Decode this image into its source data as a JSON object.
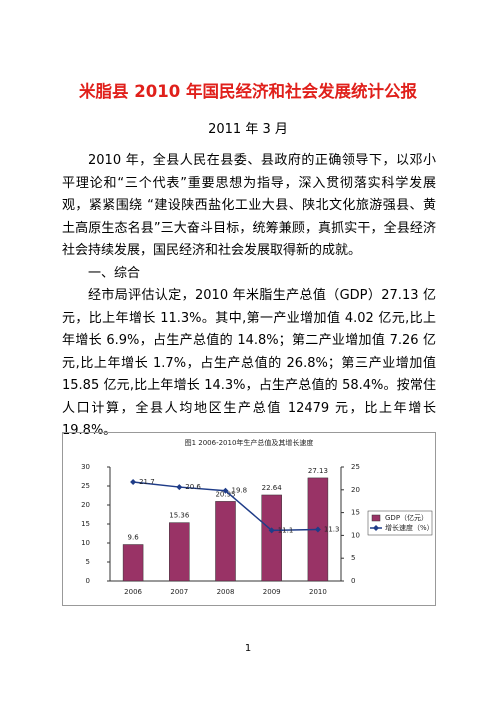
{
  "title": "米脂县 2010 年国民经济和社会发展统计公报",
  "date": "2011 年 3 月",
  "paragraphs": [
    "2010 年，全县人民在县委、县政府的正确领导下，以邓小平理论和“三个代表”重要思想为指导，深入贯彻落实科学发展观，紧紧围绕 “建设陕西盐化工业大县、陕北文化旅游强县、黄土高原生态名县”三大奋斗目标，统筹兼顾，真抓实干，全县经济社会持续发展，国民经济和社会发展取得新的成就。",
    "一、综合",
    "经市局评估认定，2010 年米脂生产总值（GDP）27.13 亿元，比上年增长 11.3%。其中,第一产业增加值 4.02 亿元,比上年增长 6.9%，占生产总值的 14.8%；第二产业增加值 7.26 亿元,比上年增长 1.7%，占生产总值的 26.8%；第三产业增加值 15.85 亿元,比上年增长 14.3%，占生产总值的 58.4%。按常住人口计算，全县人均地区生产总值 12479 元，比上年增长 19.8%。"
  ],
  "chart_data": {
    "type": "bar-line",
    "title": "图1 2006-2010年生产总值及其增长速度",
    "categories": [
      "2006",
      "2007",
      "2008",
      "2009",
      "2010"
    ],
    "series": [
      {
        "name": "GDP（亿元）",
        "type": "bar",
        "color": "#993366",
        "values": [
          9.6,
          15.36,
          20.95,
          22.64,
          27.13
        ]
      },
      {
        "name": "增长速度（%）",
        "type": "line",
        "axis": "y2",
        "color": "#1f3c88",
        "values": [
          21.7,
          20.6,
          19.8,
          11.1,
          11.3
        ]
      }
    ],
    "ylim": [
      0,
      30
    ],
    "yticks": [
      0,
      5,
      10,
      15,
      20,
      25,
      30
    ],
    "y2lim": [
      0,
      25
    ],
    "y2ticks": [
      0,
      5,
      10,
      15,
      20,
      25
    ],
    "grid": false,
    "legend": "right"
  },
  "page_number": "1"
}
